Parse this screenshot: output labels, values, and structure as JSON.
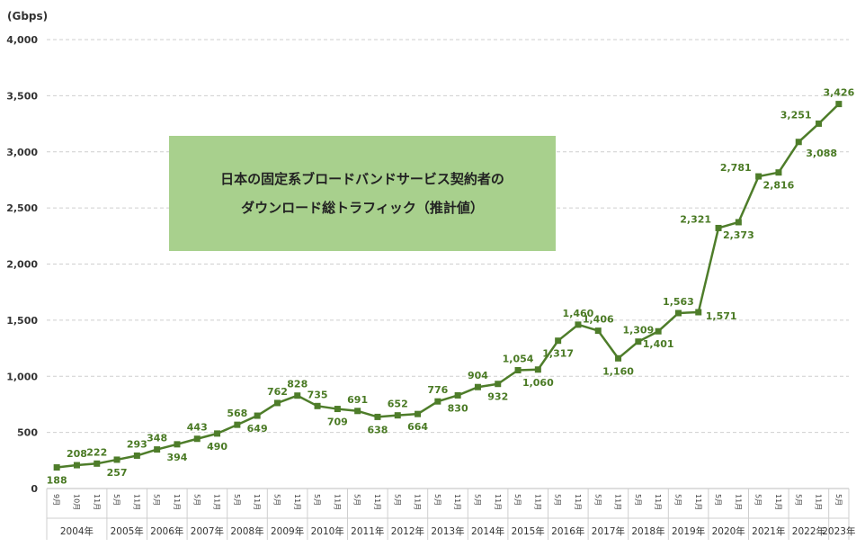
{
  "chart_data": {
    "type": "line",
    "title_lines": [
      "日本の固定系ブロードバンドサービス契約者の",
      "ダウンロード総トラフィック（推計値）"
    ],
    "unit": "(Gbps)",
    "ylim": [
      0,
      4000
    ],
    "yticks": [
      "0",
      "500",
      "1,000",
      "1,500",
      "2,000",
      "2,500",
      "3,000",
      "3,500",
      "4,000"
    ],
    "ytick_values": [
      0,
      500,
      1000,
      1500,
      2000,
      2500,
      3000,
      3500,
      4000
    ],
    "grid": true,
    "line_color": "#4e7d2a",
    "label_color": "#4a7a24",
    "box_color": "#a8d08d",
    "points": [
      {
        "month": "9月",
        "value": 188,
        "label": "188",
        "pos": "below"
      },
      {
        "month": "10月",
        "value": 208,
        "label": "208",
        "pos": "above"
      },
      {
        "month": "11月",
        "value": 222,
        "label": "222",
        "pos": "above"
      },
      {
        "month": "5月",
        "value": 257,
        "label": "257",
        "pos": "below"
      },
      {
        "month": "11月",
        "value": 293,
        "label": "293",
        "pos": "above"
      },
      {
        "month": "5月",
        "value": 348,
        "label": "348",
        "pos": "above"
      },
      {
        "month": "11月",
        "value": 394,
        "label": "394",
        "pos": "below"
      },
      {
        "month": "5月",
        "value": 443,
        "label": "443",
        "pos": "above"
      },
      {
        "month": "11月",
        "value": 490,
        "label": "490",
        "pos": "below"
      },
      {
        "month": "5月",
        "value": 568,
        "label": "568",
        "pos": "above"
      },
      {
        "month": "11月",
        "value": 649,
        "label": "649",
        "pos": "below"
      },
      {
        "month": "5月",
        "value": 762,
        "label": "762",
        "pos": "above"
      },
      {
        "month": "11月",
        "value": 828,
        "label": "828",
        "pos": "above"
      },
      {
        "month": "5月",
        "value": 735,
        "label": "735",
        "pos": "above"
      },
      {
        "month": "11月",
        "value": 709,
        "label": "709",
        "pos": "below"
      },
      {
        "month": "5月",
        "value": 691,
        "label": "691",
        "pos": "above"
      },
      {
        "month": "11月",
        "value": 638,
        "label": "638",
        "pos": "below"
      },
      {
        "month": "5月",
        "value": 652,
        "label": "652",
        "pos": "above"
      },
      {
        "month": "11月",
        "value": 664,
        "label": "664",
        "pos": "below"
      },
      {
        "month": "5月",
        "value": 776,
        "label": "776",
        "pos": "above"
      },
      {
        "month": "11月",
        "value": 830,
        "label": "830",
        "pos": "below"
      },
      {
        "month": "5月",
        "value": 904,
        "label": "904",
        "pos": "above"
      },
      {
        "month": "11月",
        "value": 932,
        "label": "932",
        "pos": "below"
      },
      {
        "month": "5月",
        "value": 1054,
        "label": "1,054",
        "pos": "above"
      },
      {
        "month": "11月",
        "value": 1060,
        "label": "1,060",
        "pos": "below"
      },
      {
        "month": "5月",
        "value": 1317,
        "label": "1,317",
        "pos": "below"
      },
      {
        "month": "11月",
        "value": 1460,
        "label": "1,460",
        "pos": "above"
      },
      {
        "month": "5月",
        "value": 1406,
        "label": "1,406",
        "pos": "above"
      },
      {
        "month": "11月",
        "value": 1160,
        "label": "1,160",
        "pos": "below"
      },
      {
        "month": "5月",
        "value": 1309,
        "label": "1,309",
        "pos": "above"
      },
      {
        "month": "11月",
        "value": 1401,
        "label": "1,401",
        "pos": "below"
      },
      {
        "month": "5月",
        "value": 1563,
        "label": "1,563",
        "pos": "above"
      },
      {
        "month": "11月",
        "value": 1571,
        "label": "1,571",
        "pos": "right"
      },
      {
        "month": "5月",
        "value": 2321,
        "label": "2,321",
        "pos": "left"
      },
      {
        "month": "11月",
        "value": 2373,
        "label": "2,373",
        "pos": "below"
      },
      {
        "month": "5月",
        "value": 2781,
        "label": "2,781",
        "pos": "left"
      },
      {
        "month": "11月",
        "value": 2816,
        "label": "2,816",
        "pos": "below"
      },
      {
        "month": "5月",
        "value": 3088,
        "label": "3,088",
        "pos": "below-right"
      },
      {
        "month": "11月",
        "value": 3251,
        "label": "3,251",
        "pos": "left"
      },
      {
        "month": "5月",
        "value": 3426,
        "label": "3,426",
        "pos": "above"
      }
    ],
    "years": [
      {
        "label": "2004年",
        "span": 3
      },
      {
        "label": "2005年",
        "span": 2
      },
      {
        "label": "2006年",
        "span": 2
      },
      {
        "label": "2007年",
        "span": 2
      },
      {
        "label": "2008年",
        "span": 2
      },
      {
        "label": "2009年",
        "span": 2
      },
      {
        "label": "2010年",
        "span": 2
      },
      {
        "label": "2011年",
        "span": 2
      },
      {
        "label": "2012年",
        "span": 2
      },
      {
        "label": "2013年",
        "span": 2
      },
      {
        "label": "2014年",
        "span": 2
      },
      {
        "label": "2015年",
        "span": 2
      },
      {
        "label": "2016年",
        "span": 2
      },
      {
        "label": "2017年",
        "span": 2
      },
      {
        "label": "2018年",
        "span": 2
      },
      {
        "label": "2019年",
        "span": 2
      },
      {
        "label": "2020年",
        "span": 2
      },
      {
        "label": "2021年",
        "span": 2
      },
      {
        "label": "2022年",
        "span": 2
      },
      {
        "label": "2023年",
        "span": 1
      }
    ]
  }
}
